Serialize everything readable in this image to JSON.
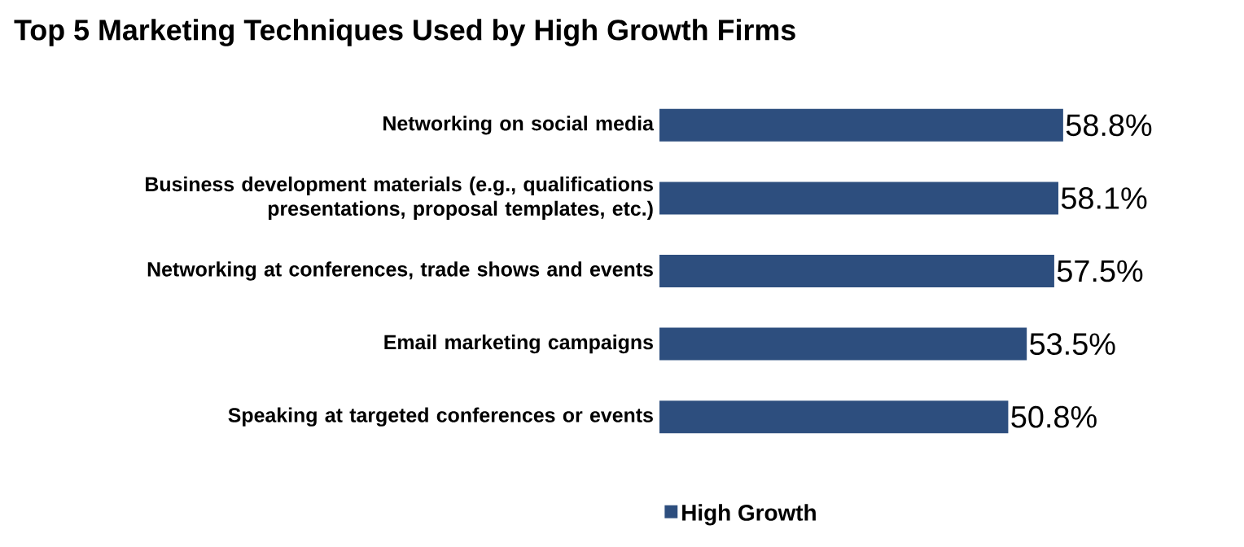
{
  "chart_data": {
    "type": "bar",
    "orientation": "horizontal",
    "title": "Top 5 Marketing Techniques Used by High Growth Firms",
    "categories": [
      "Networking on social media",
      "Business development materials (e.g., qualifications presentations, proposal templates, etc.)",
      "Networking at conferences, trade shows and events",
      "Email marketing campaigns",
      "Speaking at targeted conferences or events"
    ],
    "series": [
      {
        "name": "High Growth",
        "color": "#2d4e7e",
        "values": [
          58.8,
          58.1,
          57.5,
          53.5,
          50.8
        ],
        "value_labels": [
          "58.8%",
          "58.1%",
          "57.5%",
          "53.5%",
          "50.8%"
        ]
      }
    ],
    "legend": "bottom"
  }
}
